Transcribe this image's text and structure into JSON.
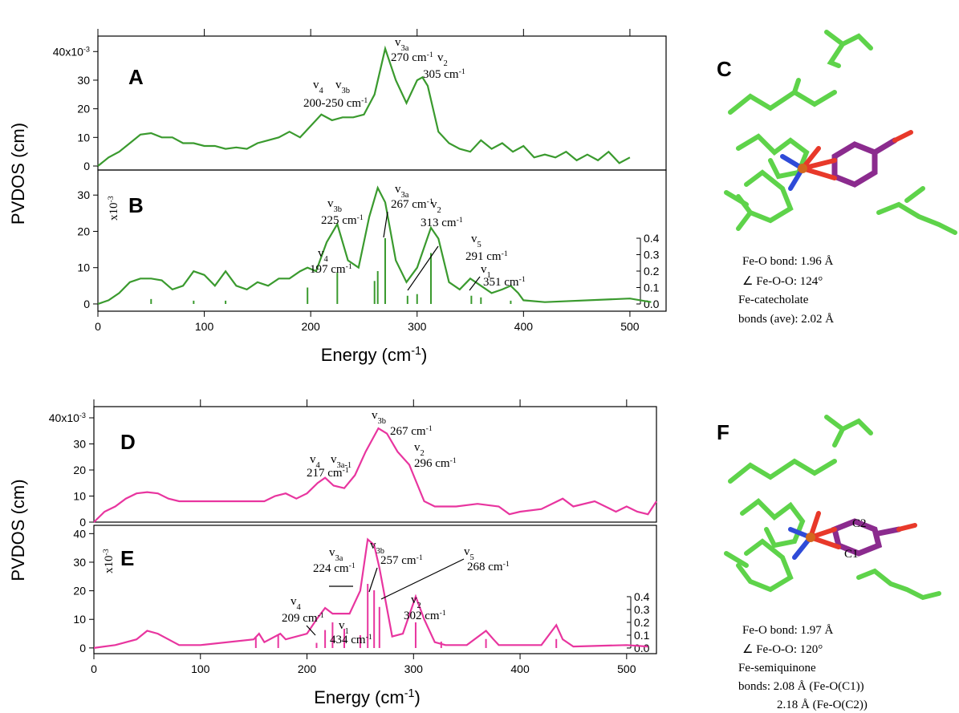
{
  "chart_data": [
    {
      "type": "line",
      "label": "A",
      "ylabel": "PVDOS (cm)",
      "x": [
        0,
        10,
        20,
        30,
        40,
        50,
        60,
        70,
        80,
        90,
        100,
        110,
        120,
        130,
        140,
        150,
        160,
        170,
        180,
        190,
        200,
        210,
        220,
        230,
        240,
        250,
        260,
        270,
        280,
        290,
        300,
        305,
        310,
        320,
        330,
        340,
        350,
        360,
        370,
        380,
        390,
        400,
        410,
        420,
        430,
        440,
        450,
        460,
        470,
        480,
        490,
        500
      ],
      "series": [
        {
          "color": "#3a9a2e",
          "values": [
            0,
            3,
            5,
            8,
            11,
            11.5,
            10,
            10,
            8,
            8,
            7,
            7,
            6,
            6.5,
            6,
            8,
            9,
            10,
            12,
            10,
            14,
            18,
            16,
            17,
            17,
            18,
            25,
            41,
            30,
            22,
            30,
            31,
            28,
            12,
            8,
            6,
            5,
            9,
            6,
            8,
            5,
            7,
            3,
            4,
            3,
            5,
            2,
            4,
            2,
            5,
            1,
            3
          ]
        }
      ],
      "xlim": [
        0,
        534
      ],
      "ylim": [
        -1.4,
        45.4
      ],
      "yticks": [
        0,
        10,
        20,
        30,
        {
          "value": 40,
          "label": "40x10-3"
        }
      ],
      "annotations": [
        "A",
        "v3a",
        "270 cm-1",
        "v2",
        "305 cm-1",
        "v4",
        "v3b",
        "200-250 cm-1"
      ]
    },
    {
      "type": "line",
      "label": "B",
      "xlabel": "Energy (cm-1)",
      "x": [
        0,
        10,
        20,
        30,
        40,
        50,
        60,
        70,
        80,
        90,
        100,
        110,
        120,
        130,
        140,
        150,
        160,
        170,
        180,
        190,
        197,
        205,
        215,
        225,
        235,
        245,
        255,
        263,
        270,
        280,
        290,
        300,
        313,
        320,
        330,
        340,
        350,
        360,
        370,
        380,
        388,
        395,
        400,
        420,
        500,
        520
      ],
      "series": [
        {
          "color": "#3a9a2e",
          "values": [
            0,
            1,
            3,
            6,
            7,
            7,
            6.5,
            4,
            5,
            9,
            8,
            5,
            9,
            5,
            4,
            6,
            5,
            7,
            7,
            9,
            10,
            9,
            17,
            22,
            12,
            10,
            24,
            32,
            28,
            12,
            6,
            10,
            21,
            18,
            6,
            4,
            7,
            5,
            3,
            4,
            5,
            3,
            1,
            0.5,
            1.5,
            0.5
          ]
        },
        {
          "type": "stick",
          "axis": "y2",
          "color": "#3a9a2e",
          "x": [
            50,
            90,
            120,
            197,
            225,
            260,
            263,
            270,
            291,
            300,
            313,
            351,
            360,
            388
          ],
          "values": [
            0.03,
            0.02,
            0.02,
            0.1,
            0.19,
            0.14,
            0.2,
            0.4,
            0.05,
            0.06,
            0.31,
            0.05,
            0.04,
            0.02
          ]
        }
      ],
      "xlim": [
        0,
        534
      ],
      "ylim": [
        -2,
        36.9
      ],
      "yticks": [
        0,
        10,
        20,
        30
      ],
      "xticks": [
        0,
        100,
        200,
        300,
        400,
        500
      ],
      "y2lim": [
        -0.044,
        0.815
      ],
      "y2ticks": [
        {
          "value": 0,
          "label": "0.0"
        },
        0.1,
        0.2,
        0.3,
        0.4
      ],
      "annotations": [
        "B",
        "v3b",
        "225 cm-1",
        "v3a",
        "267 cm-1",
        "v2",
        "313 cm-1",
        "v5",
        "291 cm-1",
        "v4",
        "197 cm-1",
        "v1",
        "351 cm-1",
        "x10-3"
      ]
    },
    {
      "type": "line",
      "label": "D",
      "ylabel": "PVDOS (cm)",
      "x": [
        0,
        10,
        20,
        30,
        40,
        50,
        60,
        70,
        80,
        90,
        100,
        120,
        140,
        160,
        170,
        180,
        190,
        200,
        210,
        217,
        225,
        235,
        245,
        255,
        267,
        275,
        285,
        296,
        300,
        310,
        320,
        340,
        360,
        380,
        390,
        400,
        420,
        440,
        450,
        470,
        480,
        490,
        500,
        510,
        520,
        528
      ],
      "series": [
        {
          "color": "#e8359f",
          "values": [
            0,
            4,
            6,
            9,
            11,
            11.5,
            11,
            9,
            8,
            8,
            8,
            8,
            8,
            8,
            10,
            11,
            9,
            11,
            15,
            17,
            14,
            13,
            18,
            27,
            36,
            34,
            27,
            22,
            18,
            8,
            6,
            6,
            7,
            6,
            3,
            4,
            5,
            9,
            6,
            8,
            6,
            4,
            6,
            4,
            3,
            8
          ]
        }
      ],
      "xlim": [
        0,
        528
      ],
      "ylim": [
        0,
        44.3
      ],
      "yticks": [
        0,
        10,
        20,
        30,
        {
          "value": 40,
          "label": "40x10-3"
        }
      ],
      "annotations": [
        "D",
        "v3b",
        "267 cm-1",
        "v2",
        "296 cm-1",
        "v4",
        "v3a-1",
        "217 cm-1"
      ]
    },
    {
      "type": "line",
      "label": "E",
      "xlabel": "Energy (cm-1)",
      "x": [
        0,
        20,
        40,
        50,
        60,
        70,
        80,
        100,
        150,
        155,
        160,
        175,
        180,
        200,
        209,
        217,
        224,
        240,
        250,
        257,
        263,
        268,
        280,
        290,
        302,
        310,
        320,
        330,
        350,
        368,
        375,
        380,
        420,
        434,
        440,
        450,
        500,
        520
      ],
      "series": [
        {
          "color": "#e8359f",
          "values": [
            0,
            1,
            3,
            6,
            5,
            3,
            1,
            1,
            3,
            5,
            2,
            5,
            3,
            5,
            10,
            14,
            12,
            12,
            20,
            38,
            36,
            28,
            4,
            5,
            18,
            10,
            2,
            1,
            1,
            6,
            3,
            1,
            1,
            8,
            3,
            0.5,
            1,
            0.5
          ]
        },
        {
          "type": "stick",
          "axis": "y2",
          "color": "#e8359f",
          "x": [
            152,
            173,
            209,
            217,
            224,
            235,
            250,
            257,
            263,
            268,
            302,
            326,
            368,
            434
          ],
          "values": [
            0.08,
            0.1,
            0.04,
            0.14,
            0.2,
            0.15,
            0.1,
            0.5,
            0.45,
            0.32,
            0.2,
            0.05,
            0.07,
            0.07
          ]
        }
      ],
      "xlim": [
        0,
        528
      ],
      "ylim": [
        -2,
        42.9
      ],
      "yticks": [
        0,
        10,
        20,
        30,
        40
      ],
      "xticks": [
        0,
        100,
        200,
        300,
        400,
        500
      ],
      "y2lim": [
        -0.044,
        0.956
      ],
      "y2ticks": [
        {
          "value": 0,
          "label": "0.0"
        },
        0.1,
        0.2,
        0.3,
        0.4
      ],
      "annotations": [
        "E",
        "v3b",
        "257 cm-1",
        "v5",
        "268 cm-1",
        "v3a",
        "224 cm-1",
        "v4",
        "209 cm-1",
        "v2",
        "302 cm-1",
        "v1",
        "434 cm-1",
        "x10-3"
      ]
    }
  ],
  "panels": {
    "C": {
      "label": "C",
      "notes": [
        "Fe-O bond: 1.96 Å",
        "∠ Fe-O-O: 124°",
        "Fe-catecholate",
        "bonds (ave):  2.02 Å"
      ]
    },
    "F": {
      "label": "F",
      "atoms": [
        "C1",
        "C2"
      ],
      "notes": [
        "Fe-O bond: 1.97 Å",
        "∠ Fe-O-O: 120°",
        "Fe-semiquinone",
        "bonds:  2.08 Å (Fe-O(C1))",
        "2.18 Å (Fe-O(C2))"
      ]
    }
  }
}
